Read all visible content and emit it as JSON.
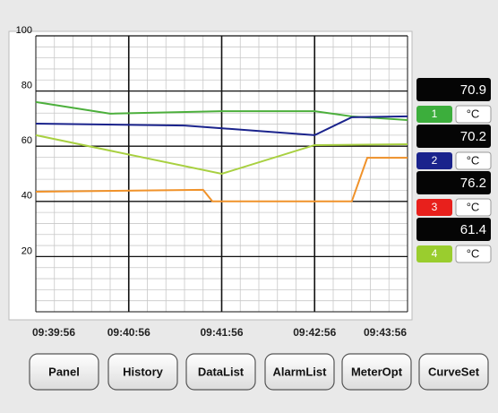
{
  "chart_data": {
    "type": "line",
    "xlim": [
      "09:39:56",
      "09:43:56"
    ],
    "xticks": [
      "09:39:56",
      "09:40:56",
      "09:41:56",
      "09:42:56",
      "09:43:56"
    ],
    "ylim": [
      0,
      100
    ],
    "yticks": [
      20,
      40,
      60,
      80,
      100
    ],
    "grid": true,
    "unit": "°C",
    "series": [
      {
        "name": "1",
        "color": "#3cae3c",
        "line_color": "#4caf3c",
        "reading": 70.9,
        "x": [
          "09:39:56",
          "09:40:44",
          "09:41:56",
          "09:42:56",
          "09:43:20",
          "09:43:56"
        ],
        "values": [
          76,
          71.8,
          72.7,
          72.7,
          70.8,
          69.5
        ]
      },
      {
        "name": "2",
        "color": "#1a238c",
        "line_color": "#1a238c",
        "reading": 70.2,
        "x": [
          "09:39:56",
          "09:41:32",
          "09:42:56",
          "09:43:20",
          "09:43:56"
        ],
        "values": [
          68.2,
          67.5,
          64,
          70.5,
          70.8
        ]
      },
      {
        "name": "3",
        "color": "#e8201c",
        "line_color": "#f0922a",
        "reading": 76.2,
        "x": [
          "09:39:56",
          "09:41:44",
          "09:41:50",
          "09:43:20",
          "09:43:30",
          "09:43:56"
        ],
        "values": [
          43.5,
          44.2,
          40,
          40,
          55.8,
          55.8
        ]
      },
      {
        "name": "4",
        "color": "#9acd2e",
        "line_color": "#a8d040",
        "reading": 61.4,
        "x": [
          "09:39:56",
          "09:41:56",
          "09:42:56",
          "09:43:56"
        ],
        "values": [
          64,
          50,
          60.4,
          60.7
        ]
      }
    ]
  },
  "buttons": [
    "Panel",
    "History",
    "DataList",
    "AlarmList",
    "MeterOpt",
    "CurveSet"
  ]
}
